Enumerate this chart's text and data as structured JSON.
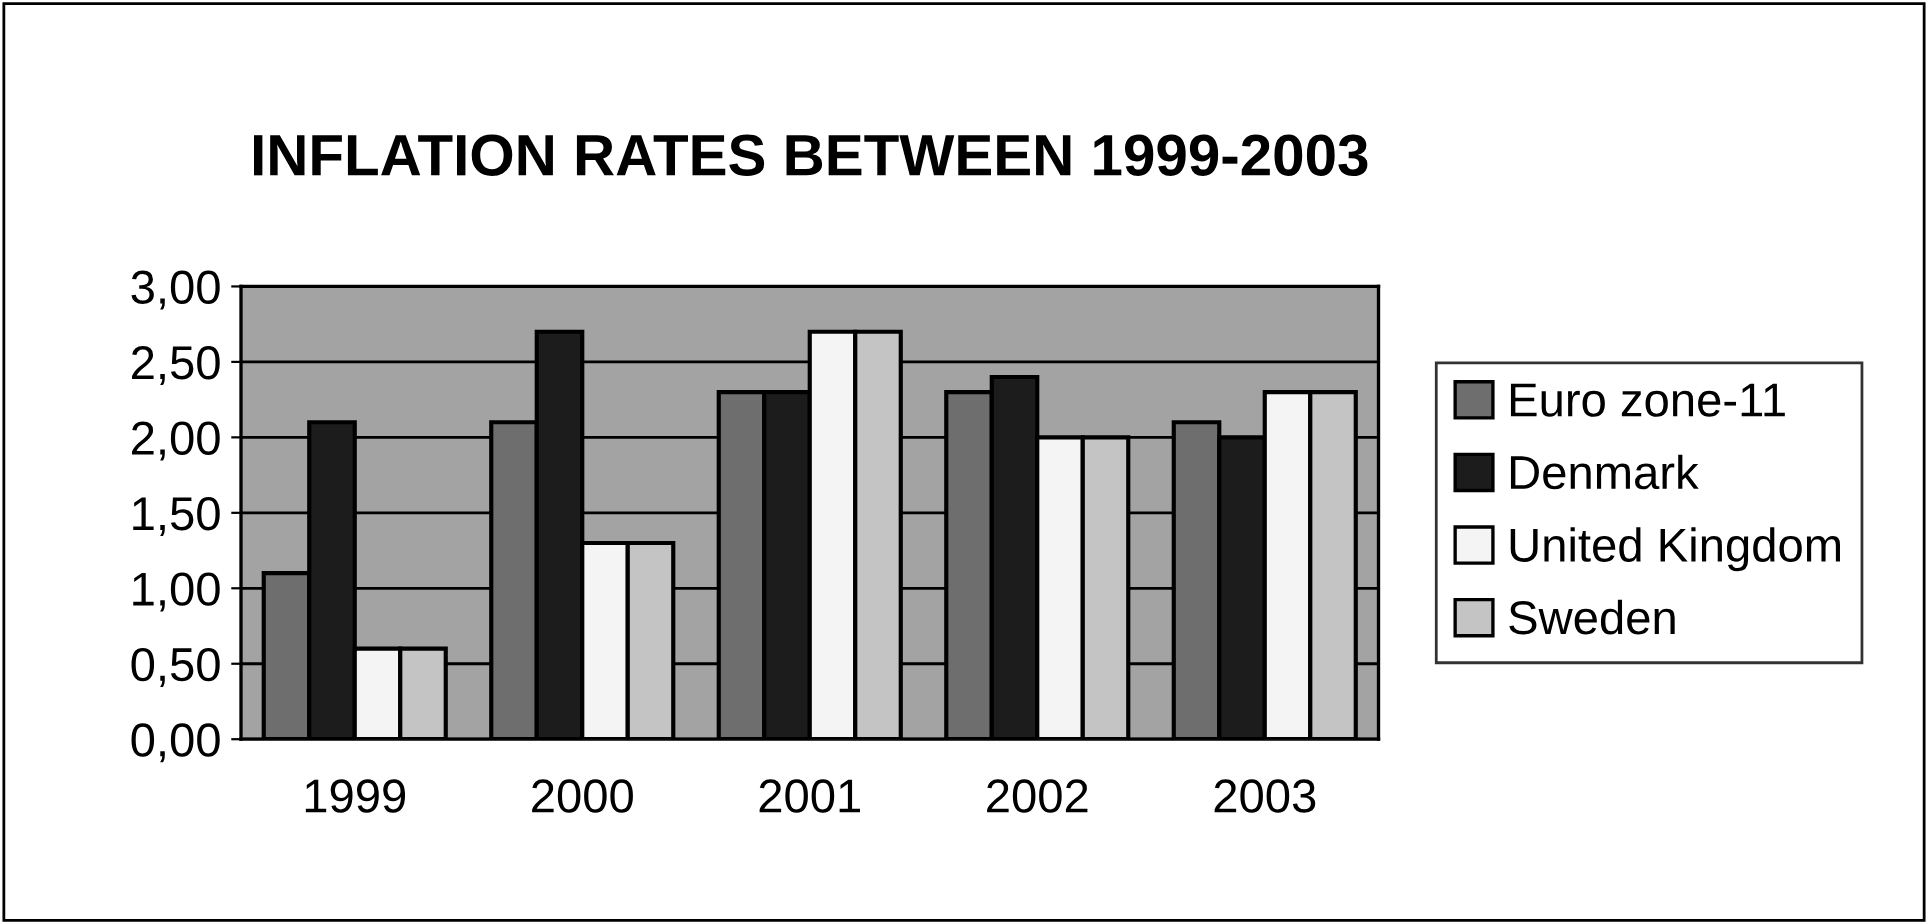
{
  "chart_data": {
    "type": "bar",
    "title": "INFLATION RATES BETWEEN 1999-2003",
    "categories": [
      "1999",
      "2000",
      "2001",
      "2002",
      "2003"
    ],
    "series": [
      {
        "name": "Euro zone-11",
        "color": "#6e6e6e",
        "values": [
          1.1,
          2.1,
          2.3,
          2.3,
          2.1
        ]
      },
      {
        "name": "Denmark",
        "color": "#1c1c1c",
        "values": [
          2.1,
          2.7,
          2.3,
          2.4,
          2.0
        ]
      },
      {
        "name": "United Kingdom",
        "color": "#f4f4f4",
        "values": [
          0.6,
          1.3,
          2.7,
          2.0,
          2.3
        ]
      },
      {
        "name": "Sweden",
        "color": "#c4c4c4",
        "values": [
          0.6,
          1.3,
          2.7,
          2.0,
          2.3
        ]
      }
    ],
    "ylim": [
      0,
      3
    ],
    "yticks": [
      {
        "value": 0,
        "label": "0,00"
      },
      {
        "value": 0.5,
        "label": "0,50"
      },
      {
        "value": 1,
        "label": "1,00"
      },
      {
        "value": 1.5,
        "label": "1,50"
      },
      {
        "value": 2,
        "label": "2,00"
      },
      {
        "value": 2.5,
        "label": "2,50"
      },
      {
        "value": 3,
        "label": "3,00"
      }
    ],
    "grid": "y",
    "legend": "right"
  }
}
